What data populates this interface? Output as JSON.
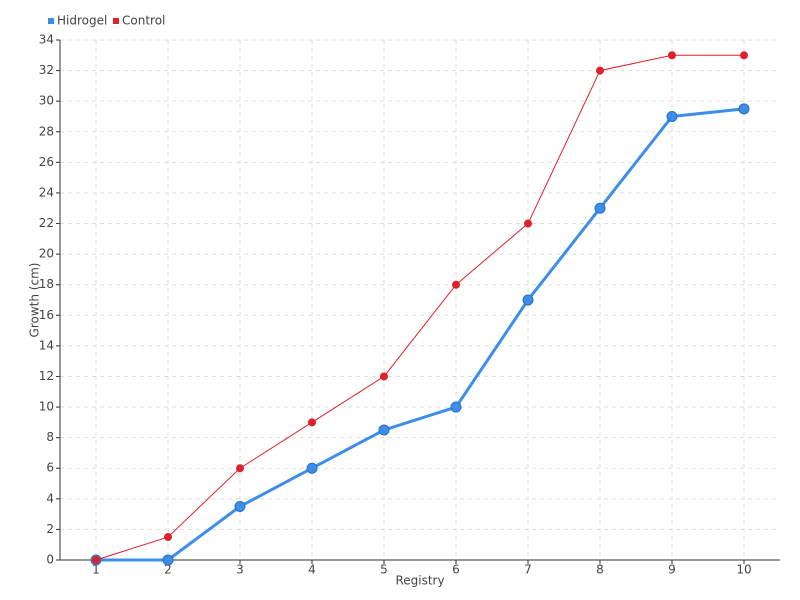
{
  "chart_data": {
    "type": "line",
    "x_label": "Registry",
    "y_label": "Growth (cm)",
    "categories": [
      "1",
      "2",
      "3",
      "4",
      "5",
      "6",
      "7",
      "8",
      "9",
      "10"
    ],
    "series": [
      {
        "name": "Hidrogel",
        "color": "#3d8ee8",
        "values": [
          0,
          0,
          3.5,
          6,
          8.5,
          10,
          17,
          23,
          29,
          29.5
        ]
      },
      {
        "name": "Control",
        "color": "#e0202a",
        "values": [
          0,
          1.5,
          6,
          9,
          12,
          18,
          22,
          32,
          33,
          33
        ]
      }
    ],
    "ylim": [
      0,
      34
    ],
    "yticks": [
      0,
      2,
      4,
      6,
      8,
      10,
      12,
      14,
      16,
      18,
      20,
      22,
      24,
      26,
      28,
      30,
      32,
      34
    ],
    "grid": true,
    "legend": "top-left"
  }
}
